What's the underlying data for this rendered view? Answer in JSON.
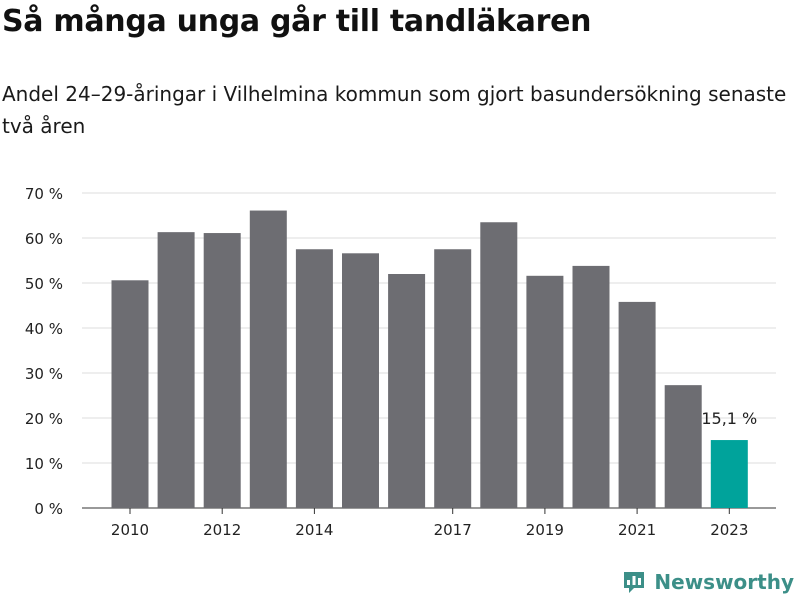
{
  "header": {
    "title": "Så många unga går till tandläkaren",
    "subtitle": "Andel 24–29-åringar i Vilhelmina kommun som gjort basundersökning senaste två åren"
  },
  "brand": {
    "name": "Newsworthy",
    "color": "#3c8f88",
    "icon": "bar-chart-bubble-icon"
  },
  "colors": {
    "bar": "#6d6d72",
    "highlight": "#00a39b",
    "grid": "#dddddd",
    "axis_text": "#222222"
  },
  "chart_data": {
    "type": "bar",
    "categories": [
      "2010",
      "2011",
      "2012",
      "2013",
      "2014",
      "2015",
      "2016",
      "2017",
      "2018",
      "2019",
      "2020",
      "2021",
      "2022",
      "2023"
    ],
    "x_tick_labels": [
      "2010",
      "",
      "2012",
      "",
      "2014",
      "",
      "",
      "2017",
      "",
      "2019",
      "",
      "2021",
      "",
      "2023"
    ],
    "values": [
      50.6,
      61.3,
      61.1,
      66.1,
      57.5,
      56.6,
      52.0,
      57.5,
      63.5,
      51.6,
      53.8,
      45.8,
      27.3,
      15.1
    ],
    "highlight_index": 13,
    "highlight_label": "15,1 %",
    "y_ticks": [
      0,
      10,
      20,
      30,
      40,
      50,
      60,
      70
    ],
    "y_tick_labels": [
      "0 %",
      "10 %",
      "20 %",
      "30 %",
      "40 %",
      "50 %",
      "60 %",
      "70 %"
    ],
    "ylim": [
      0,
      70
    ],
    "grid": true,
    "legend": false
  }
}
